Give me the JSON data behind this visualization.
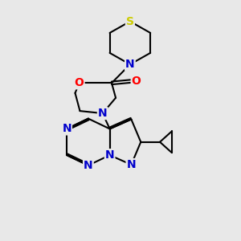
{
  "background_color": "#e8e8e8",
  "atom_colors": {
    "N": "#0000cc",
    "O": "#ff0000",
    "S": "#cccc00"
  },
  "bond_color": "#000000",
  "figsize": [
    3.0,
    3.0
  ],
  "dpi": 100
}
